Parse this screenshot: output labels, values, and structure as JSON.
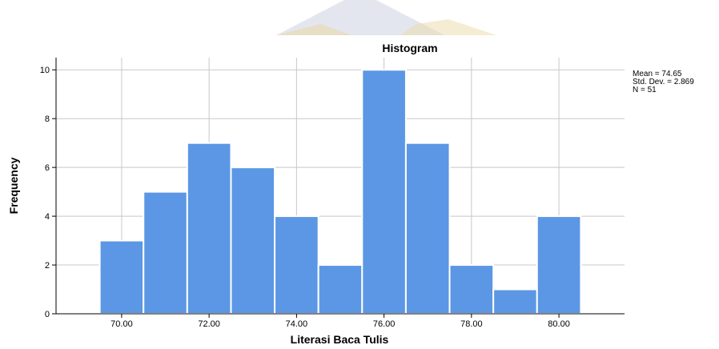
{
  "chart_data": {
    "type": "bar",
    "title": "Histogram",
    "xlabel": "Literasi Baca Tulis",
    "ylabel": "Frequency",
    "bin_centers": [
      70,
      71,
      72,
      73,
      74,
      75,
      76,
      77,
      78,
      79,
      80
    ],
    "values": [
      3,
      5,
      7,
      6,
      4,
      2,
      10,
      7,
      2,
      1,
      4
    ],
    "bin_width": 1,
    "xlim": [
      68.5,
      81.5
    ],
    "ylim": [
      0,
      10.5
    ],
    "x_ticks": [
      70,
      72,
      74,
      76,
      78,
      80
    ],
    "x_tick_labels": [
      "70.00",
      "72.00",
      "74.00",
      "76.00",
      "78.00",
      "80.00"
    ],
    "y_ticks": [
      0,
      2,
      4,
      6,
      8,
      10
    ],
    "y_tick_labels": [
      "0",
      "2",
      "4",
      "6",
      "8",
      "10"
    ],
    "grid": true,
    "bar_color": "#5b97e4",
    "stats": {
      "mean": "Mean = 74.65",
      "std": "Std. Dev. = 2.869",
      "n": "N = 51"
    }
  }
}
